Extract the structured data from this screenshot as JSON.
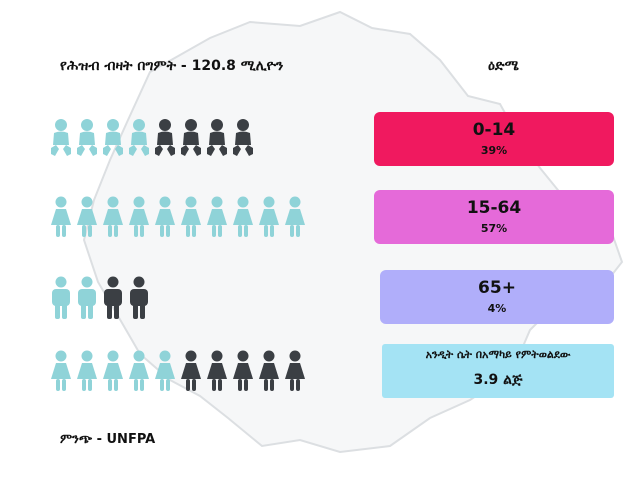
{
  "header": {
    "population_title": "የሕዝብ ብዛት በግምት - 120.8 ሚሊዮን",
    "age_title": "ዕድሜ"
  },
  "colors": {
    "teal": "#8fd3d8",
    "dark": "#3b3f44",
    "group_0_14": "#f0195f",
    "group_15_64": "#e56ad9",
    "group_65_plus": "#b0aefa",
    "fertility": "#a4e3f4"
  },
  "chart_data": {
    "type": "pictograph",
    "title": "የሕዝብ ብዛት በግምት - 120.8 ሚሊዮን",
    "total_population_millions": 120.8,
    "series": [
      {
        "name": "0-14",
        "percent_label": "39%",
        "value": 39,
        "icon": "baby-icon",
        "icons_total": 8,
        "icons_highlighted": 4
      },
      {
        "name": "15-64",
        "percent_label": "57%",
        "value": 57,
        "icon": "woman-icon",
        "icons_total": 10,
        "icons_highlighted": 10
      },
      {
        "name": "65+",
        "percent_label": "4%",
        "value": 4,
        "icon": "man-icon",
        "icons_total": 4,
        "icons_highlighted": 2
      }
    ],
    "fertility": {
      "label": "አንዲት ሴት በአማካይ የምትወልደው",
      "value_text": "3.9 ልጅ",
      "value": 3.9,
      "icon": "woman-icon",
      "icons_total": 10,
      "icons_highlighted": 5
    }
  },
  "source": "ምንጭ - UNFPA"
}
